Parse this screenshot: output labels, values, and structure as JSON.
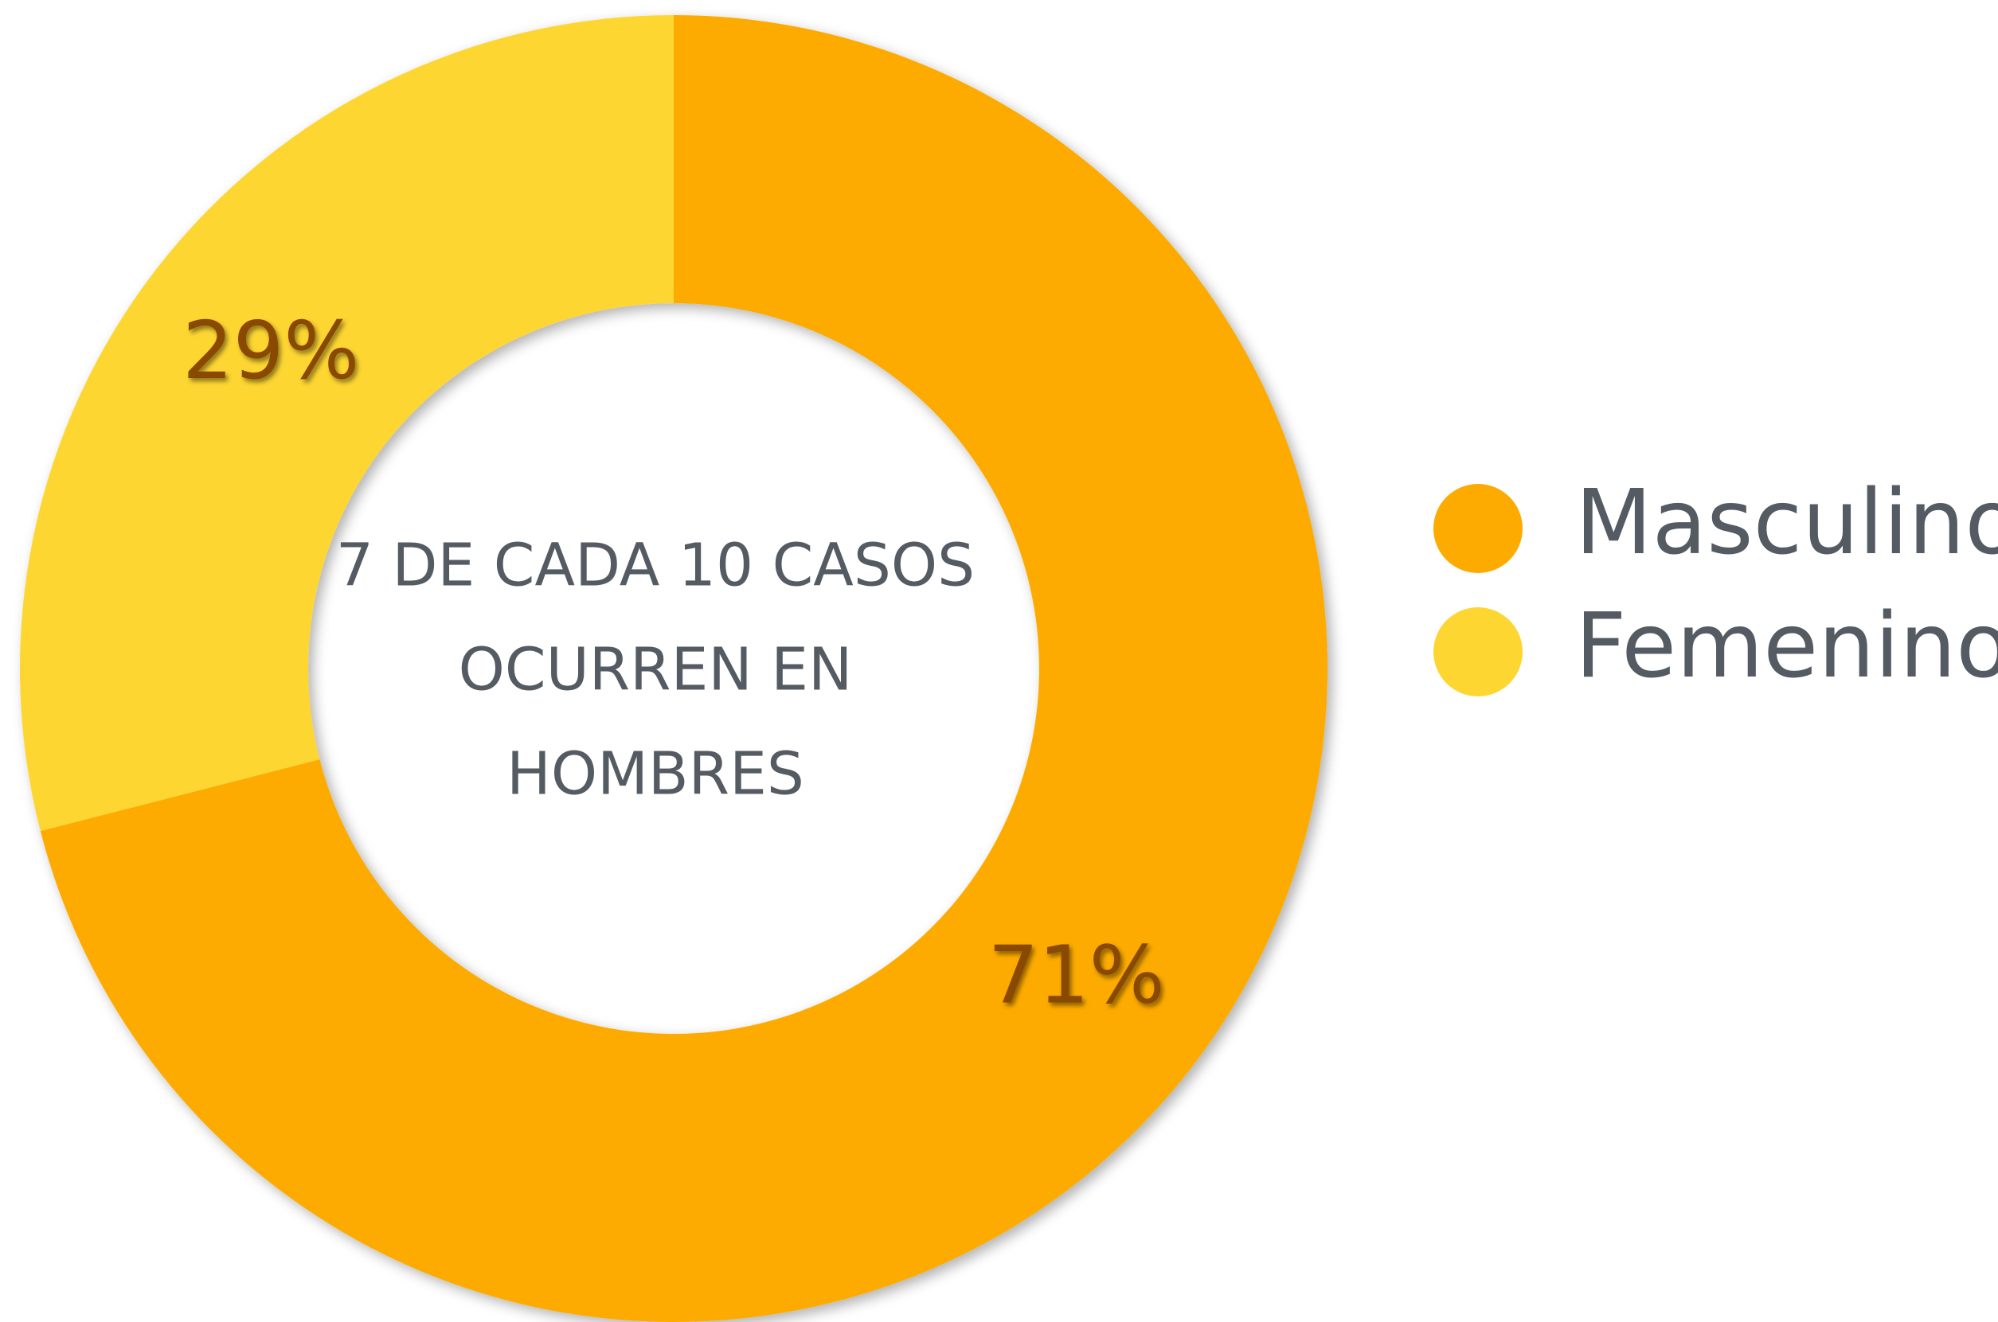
{
  "chart_data": {
    "type": "donut",
    "categories": [
      "Masculino",
      "Femenino"
    ],
    "values": [
      71,
      29
    ],
    "value_labels": [
      "71%",
      "29%"
    ],
    "colors": [
      "#fdab00",
      "#fed632"
    ],
    "center_text": [
      "7 DE CADA 10 CASOS",
      "OCURREN EN",
      "HOMBRES"
    ],
    "legend": "right"
  }
}
